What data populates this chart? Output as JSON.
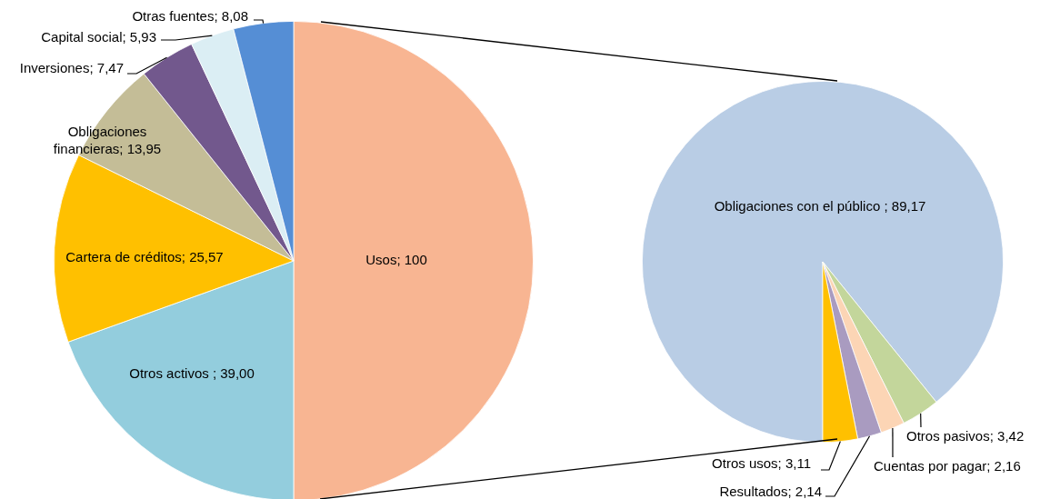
{
  "chart_data": [
    {
      "type": "pie",
      "categories": [
        "Usos",
        "Otros activos ",
        "Cartera de créditos",
        "Obligaciones financieras",
        "Inversiones",
        "Capital social",
        "Otras fuentes"
      ],
      "values": [
        100,
        39.0,
        25.57,
        13.95,
        7.47,
        5.93,
        8.08
      ],
      "colors": [
        "#f8b592",
        "#93cddd",
        "#ffc000",
        "#c4bd97",
        "#72588d",
        "#dbeef4",
        "#558ed5"
      ],
      "value_labels": [
        "100",
        "39,00",
        "25,57",
        "13,95",
        "7,47",
        "5,93",
        "8,08"
      ]
    },
    {
      "type": "pie",
      "categories": [
        "Obligaciones con el público ",
        "Otros pasivos",
        "Cuentas por pagar",
        "Resultados",
        "Otros usos"
      ],
      "values": [
        89.17,
        3.42,
        2.16,
        2.14,
        3.11
      ],
      "colors": [
        "#b9cde5",
        "#c3d69b",
        "#fcd5b5",
        "#a99bc0",
        "#ffc000"
      ],
      "value_labels": [
        "89,17",
        "3,42",
        "2,16",
        "2,14",
        "3,11"
      ]
    }
  ]
}
